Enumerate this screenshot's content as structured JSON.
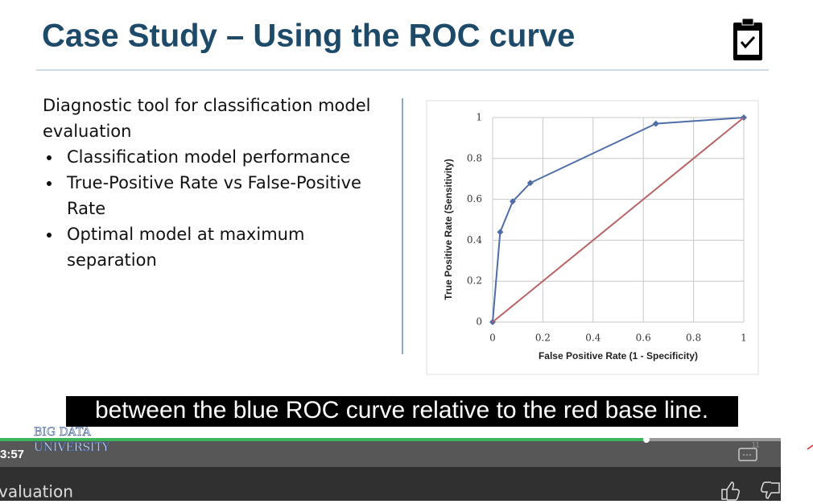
{
  "slide": {
    "title": "Case Study – Using the ROC curve",
    "intro": [
      "Diagnostic tool for classification model",
      "evaluation"
    ],
    "bullets": [
      [
        "Classification model performance"
      ],
      [
        "True-Positive Rate vs False-Positive",
        "Rate"
      ],
      [
        "Optimal model at maximum",
        "separation"
      ]
    ]
  },
  "chart_data": {
    "type": "line",
    "xlabel": "False Positive Rate  (1 - Specificity)",
    "ylabel": "True Positive Rate  (Sensitivity)",
    "series": [
      {
        "color": "#4f6ea8",
        "markers": true,
        "x": [
          0,
          0.03,
          0.08,
          0.15,
          0.65,
          1
        ],
        "values": [
          0,
          0.44,
          0.59,
          0.68,
          0.97,
          1
        ]
      },
      {
        "color": "#b86466",
        "markers": false,
        "x": [
          0,
          1
        ],
        "values": [
          0,
          1
        ]
      }
    ],
    "xlim": [
      0,
      1
    ],
    "ylim": [
      0,
      1
    ],
    "xticks": [
      0,
      0.2,
      0.4,
      0.6,
      0.8,
      1
    ],
    "yticks": [
      0,
      0.2,
      0.4,
      0.6,
      0.8,
      1
    ],
    "grid": true
  },
  "caption": "between the blue ROC curve relative to the red base line.",
  "player": {
    "logo": [
      "BIG DATA",
      "UNIVERSITY"
    ],
    "time": "3:57",
    "slide_number": "11",
    "video_title": "valuation"
  }
}
